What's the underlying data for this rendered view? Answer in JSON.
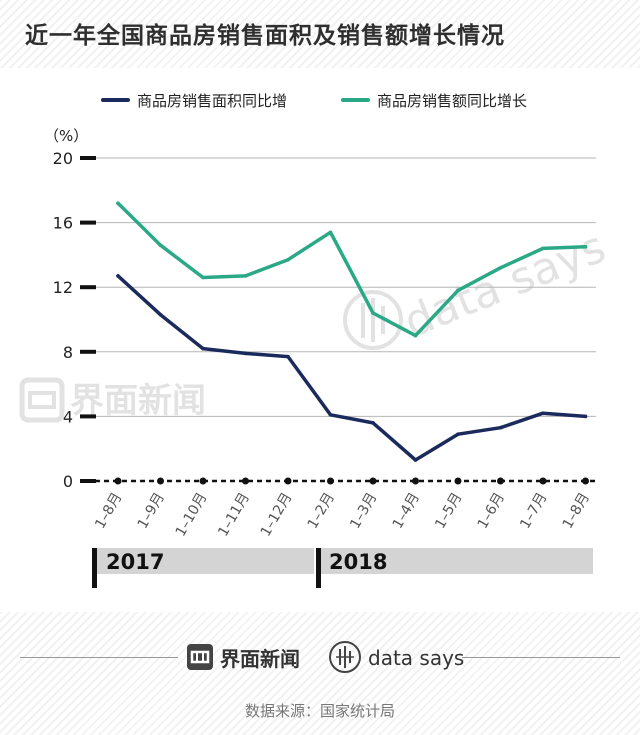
{
  "header": {
    "title": "近一年全国商品房销售面积及销售额增长情况"
  },
  "chart_data": {
    "type": "line",
    "y_unit": "（%）",
    "ylim": [
      0,
      20
    ],
    "yticks": [
      "0",
      "4",
      "8",
      "12",
      "16",
      "20"
    ],
    "categories": [
      "1–8月",
      "1–9月",
      "1–10月",
      "1–11月",
      "1–12月",
      "1–2月",
      "1–3月",
      "1–4月",
      "1–5月",
      "1–6月",
      "1–7月",
      "1–8月"
    ],
    "year_groups": [
      {
        "label": "2017",
        "span": [
          0,
          4
        ]
      },
      {
        "label": "2018",
        "span": [
          5,
          11
        ]
      }
    ],
    "series": [
      {
        "name": "商品房销售面积同比增",
        "color": "#1b2a5c",
        "values": [
          12.7,
          10.3,
          8.2,
          7.9,
          7.7,
          4.1,
          3.6,
          1.3,
          2.9,
          3.3,
          4.2,
          4.0
        ]
      },
      {
        "name": "商品房销售额同比增长",
        "color": "#2ba886",
        "values": [
          17.2,
          14.6,
          12.6,
          12.7,
          13.7,
          15.4,
          10.4,
          9.0,
          11.8,
          13.2,
          14.4,
          14.5
        ]
      }
    ],
    "grid": true,
    "legend": "top"
  },
  "watermarks": {
    "left": "界面新闻",
    "right": "data says"
  },
  "footer": {
    "brand1": "界面新闻",
    "brand2": "data says",
    "source": "数据来源：国家统计局"
  }
}
